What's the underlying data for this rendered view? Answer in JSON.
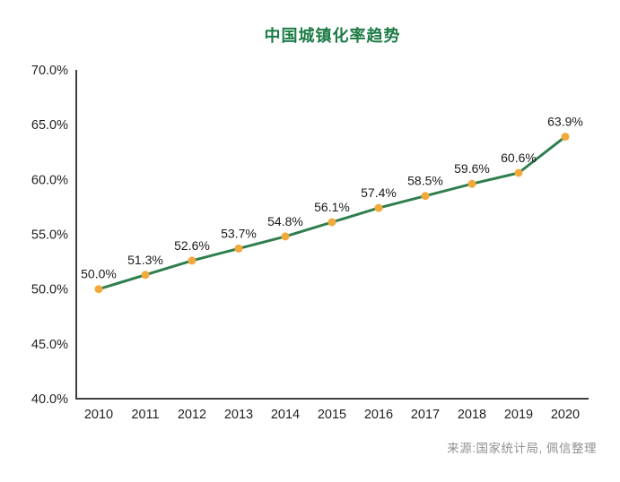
{
  "chart_data": {
    "type": "line",
    "title": "中国城镇化率趋势",
    "x": [
      "2010",
      "2011",
      "2012",
      "2013",
      "2014",
      "2015",
      "2016",
      "2017",
      "2018",
      "2019",
      "2020"
    ],
    "series": [
      {
        "name": "中国城镇化率",
        "values": [
          50.0,
          51.3,
          52.6,
          53.7,
          54.8,
          56.1,
          57.4,
          58.5,
          59.6,
          60.6,
          63.9
        ]
      }
    ],
    "data_labels": [
      "50.0%",
      "51.3%",
      "52.6%",
      "53.7%",
      "54.8%",
      "56.1%",
      "57.4%",
      "58.5%",
      "59.6%",
      "60.6%",
      "63.9%"
    ],
    "xlabel": "",
    "ylabel": "",
    "ylim": [
      40,
      70
    ],
    "ytick_values": [
      70,
      65,
      60,
      55,
      50,
      45,
      40
    ],
    "ytick_labels": [
      "70.0%",
      "65.0%",
      "60.0%",
      "55.0%",
      "50.0%",
      "45.0%",
      "40.0%"
    ],
    "grid": false,
    "legend_position": "none",
    "colors": {
      "line": "#2F7E4D",
      "marker": "#F2A93C",
      "title": "#1E7B47",
      "axis": "#3F3F3F",
      "tick_label": "#1F1F1F",
      "data_label": "#1A1A1A",
      "source": "#909090"
    }
  },
  "source_note": "来源:国家统计局, 佩信整理"
}
